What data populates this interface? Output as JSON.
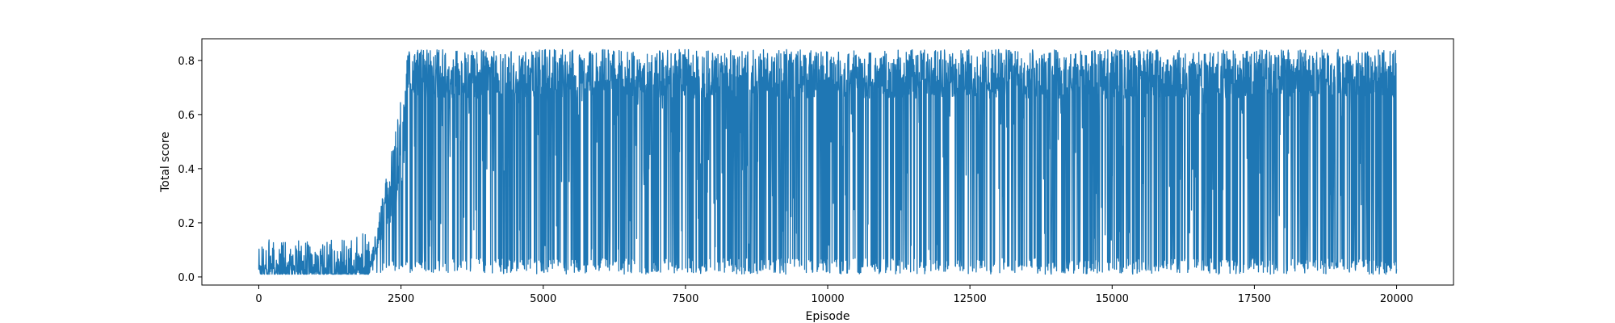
{
  "chart_data": {
    "type": "line",
    "title": "",
    "xlabel": "Episode",
    "ylabel": "Total score",
    "xlim": [
      -1000,
      21000
    ],
    "ylim": [
      -0.03,
      0.88
    ],
    "x_ticks": [
      0,
      2500,
      5000,
      7500,
      10000,
      12500,
      15000,
      17500,
      20000
    ],
    "x_tick_labels": [
      "0",
      "2500",
      "5000",
      "7500",
      "10000",
      "12500",
      "15000",
      "17500",
      "20000"
    ],
    "y_ticks": [
      0.0,
      0.2,
      0.4,
      0.6,
      0.8
    ],
    "y_tick_labels": [
      "0.0",
      "0.2",
      "0.4",
      "0.6",
      "0.8"
    ],
    "grid": false,
    "legend": "none",
    "series": [
      {
        "color": "#1f77b4",
        "x_range": [
          0,
          20000
        ],
        "phases": [
          {
            "x_start": 0,
            "x_end": 2050,
            "y_floor": 0.01,
            "y_ceiling": 0.16,
            "description_of_level": "low"
          },
          {
            "x_start": 1950,
            "x_end": 2600,
            "y_floor": 0.05,
            "y_ceiling": 0.77,
            "description_of_level": "rising"
          },
          {
            "x_start": 2600,
            "x_end": 20000,
            "y_floor": 0.01,
            "y_ceiling": 0.84,
            "description_of_level": "plateau"
          }
        ]
      }
    ]
  }
}
